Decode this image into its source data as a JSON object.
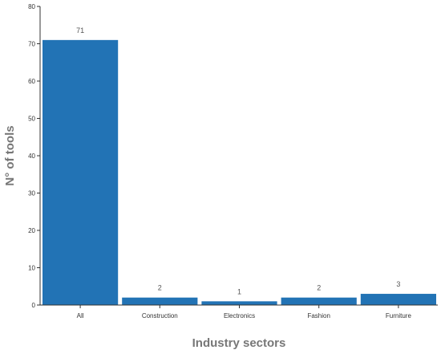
{
  "chart_data": {
    "type": "bar",
    "title": "",
    "xlabel": "Industry sectors",
    "ylabel": "N° of tools",
    "categories": [
      "All",
      "Construction",
      "Electronics",
      "Fashion",
      "Furniture"
    ],
    "values": [
      71,
      2,
      1,
      2,
      3
    ],
    "data_labels": [
      "71",
      "2",
      "1",
      "2",
      "3"
    ],
    "ylim": [
      0,
      80
    ],
    "yticks": [
      0,
      10,
      20,
      30,
      40,
      50,
      60,
      70,
      80
    ],
    "grid": false,
    "legend": "none",
    "bar_color": "#2273b5"
  }
}
